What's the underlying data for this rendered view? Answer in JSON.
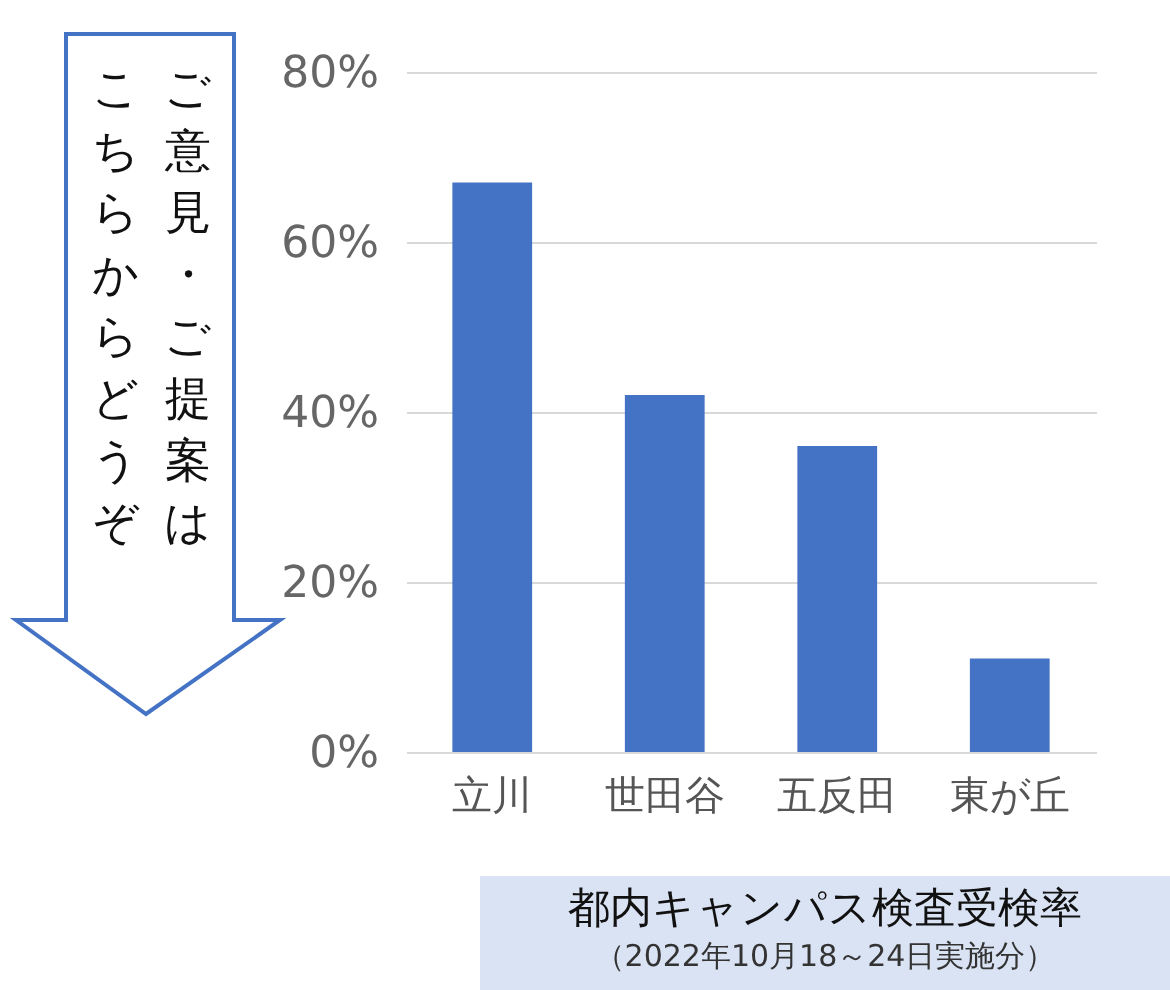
{
  "chart_data": {
    "type": "bar",
    "title": "都内キャンパス検査受検率",
    "subtitle": "（2022年10月18～24日実施分）",
    "categories": [
      "立川",
      "世田谷",
      "五反田",
      "東が丘"
    ],
    "values": [
      67,
      42,
      36,
      11
    ],
    "color": "#4472c4",
    "ylim": [
      0,
      80
    ],
    "yticks": [
      {
        "value": 0,
        "label": "0%"
      },
      {
        "value": 20,
        "label": "20%"
      },
      {
        "value": 40,
        "label": "40%"
      },
      {
        "value": 60,
        "label": "60%"
      },
      {
        "value": 80,
        "label": "80%"
      }
    ],
    "grid": "y",
    "annotations": [
      "ご意見・ご提案は",
      "こちらからどうぞ"
    ]
  }
}
